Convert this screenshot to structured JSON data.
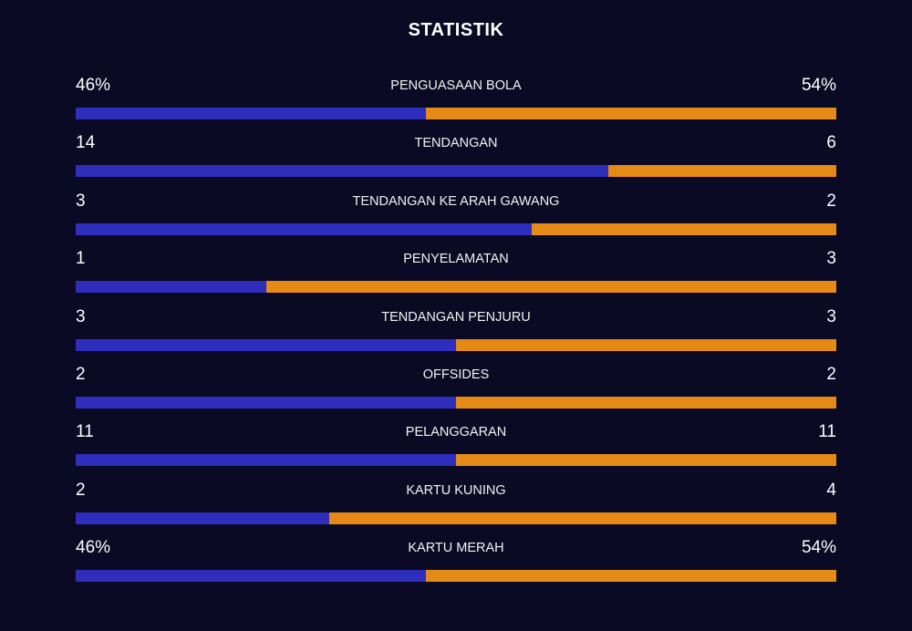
{
  "title": "STATISTIK",
  "colors": {
    "home": "#2e2dbc",
    "away": "#e58a17",
    "background": "#0a0a24"
  },
  "stats": [
    {
      "label": "PENGUASAAN BOLA",
      "home": "46%",
      "away": "54%",
      "home_share": 0.46
    },
    {
      "label": "TENDANGAN",
      "home": "14",
      "away": "6",
      "home_share": 0.7
    },
    {
      "label": "TENDANGAN KE ARAH GAWANG",
      "home": "3",
      "away": "2",
      "home_share": 0.6
    },
    {
      "label": "PENYELAMATAN",
      "home": "1",
      "away": "3",
      "home_share": 0.25
    },
    {
      "label": "TENDANGAN PENJURU",
      "home": "3",
      "away": "3",
      "home_share": 0.5
    },
    {
      "label": "OFFSIDES",
      "home": "2",
      "away": "2",
      "home_share": 0.5
    },
    {
      "label": "PELANGGARAN",
      "home": "11",
      "away": "11",
      "home_share": 0.5
    },
    {
      "label": "KARTU KUNING",
      "home": "2",
      "away": "4",
      "home_share": 0.3333
    },
    {
      "label": "KARTU MERAH",
      "home": "46%",
      "away": "54%",
      "home_share": 0.46
    }
  ]
}
